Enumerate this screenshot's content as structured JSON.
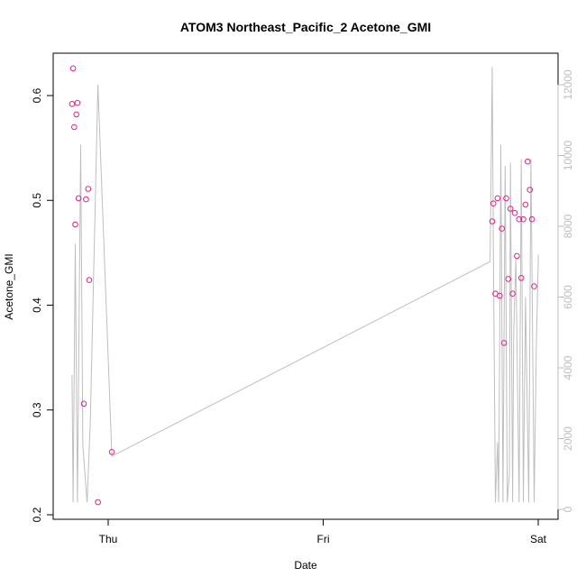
{
  "chart_data": {
    "type": "scatter",
    "title": "ATOM3 Northeast_Pacific_2 Acetone_GMI",
    "xlabel": "Date",
    "ylabel": "Acetone_GMI",
    "x_ticks": [
      "Thu",
      "Fri",
      "Sat"
    ],
    "y_ticks": [
      "0.2",
      "0.3",
      "0.4",
      "0.5",
      "0.6"
    ],
    "y_right_ticks": [
      "0",
      "2000",
      "4000",
      "6000",
      "8000",
      "10000",
      "12000"
    ],
    "ylim": [
      0.2,
      0.64
    ],
    "y_right_lim": [
      0,
      12000
    ],
    "xlim_days": [
      -0.2,
      2.05
    ],
    "grid": false,
    "colors": {
      "points": "#e0218a",
      "altitude_line": "#bebebe",
      "axis": "#000000"
    },
    "series": [
      {
        "type": "scatter",
        "axis": "left",
        "x_days": [
          -0.168,
          -0.163,
          -0.158,
          -0.153,
          -0.148,
          -0.143,
          -0.138,
          -0.113,
          -0.103,
          -0.093,
          -0.088,
          -0.048,
          0.017,
          1.786,
          1.791,
          1.801,
          1.811,
          1.821,
          1.831,
          1.841,
          1.851,
          1.861,
          1.871,
          1.881,
          1.891,
          1.901,
          1.911,
          1.921,
          1.931,
          1.941,
          1.951,
          1.961,
          1.971,
          1.981
        ],
        "values": [
          0.592,
          0.626,
          0.57,
          0.477,
          0.582,
          0.593,
          0.502,
          0.306,
          0.501,
          0.511,
          0.424,
          0.212,
          0.26,
          0.48,
          0.497,
          0.411,
          0.502,
          0.409,
          0.473,
          0.364,
          0.502,
          0.425,
          0.492,
          0.411,
          0.488,
          0.447,
          0.482,
          0.426,
          0.482,
          0.496,
          0.537,
          0.51,
          0.482,
          0.418
        ]
      },
      {
        "type": "line",
        "axis": "right",
        "x_days": [
          -0.168,
          -0.163,
          -0.153,
          -0.143,
          -0.128,
          -0.118,
          -0.098,
          -0.083,
          -0.048,
          0.017,
          1.776,
          1.786,
          1.791,
          1.801,
          1.811,
          1.816,
          1.821,
          1.826,
          1.836,
          1.846,
          1.856,
          1.866,
          1.871,
          1.881,
          1.886,
          1.896,
          1.911,
          1.921,
          1.931,
          1.941,
          1.956,
          1.966,
          1.981,
          1.991,
          2.001
        ],
        "values": [
          3800,
          200,
          7500,
          200,
          10300,
          1800,
          200,
          2500,
          12000,
          1500,
          7000,
          12500,
          7500,
          200,
          1900,
          200,
          5000,
          10300,
          200,
          9700,
          200,
          1000,
          9800,
          200,
          5000,
          7100,
          200,
          9900,
          200,
          6000,
          200,
          9900,
          200,
          4600,
          7200
        ]
      }
    ]
  }
}
